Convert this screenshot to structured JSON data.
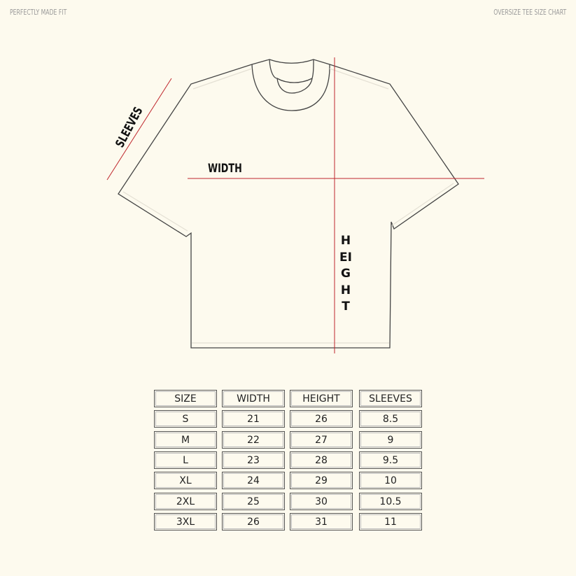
{
  "header": {
    "left": "PERFECTLY MADE FIT",
    "right": "OVERSIZE TEE SIZE CHART"
  },
  "diagram": {
    "width_label": "WIDTH",
    "sleeves_label": "SLEEVES",
    "height_label": "HEIGHT",
    "measure_color": "#c0272d",
    "outline_color": "#444444"
  },
  "chart_data": {
    "type": "table",
    "columns": [
      "SIZE",
      "WIDTH",
      "HEIGHT",
      "SLEEVES"
    ],
    "rows": [
      [
        "S",
        "21",
        "26",
        "8.5"
      ],
      [
        "M",
        "22",
        "27",
        "9"
      ],
      [
        "L",
        "23",
        "28",
        "9.5"
      ],
      [
        "XL",
        "24",
        "29",
        "10"
      ],
      [
        "2XL",
        "25",
        "30",
        "10.5"
      ],
      [
        "3XL",
        "26",
        "31",
        "11"
      ]
    ]
  }
}
